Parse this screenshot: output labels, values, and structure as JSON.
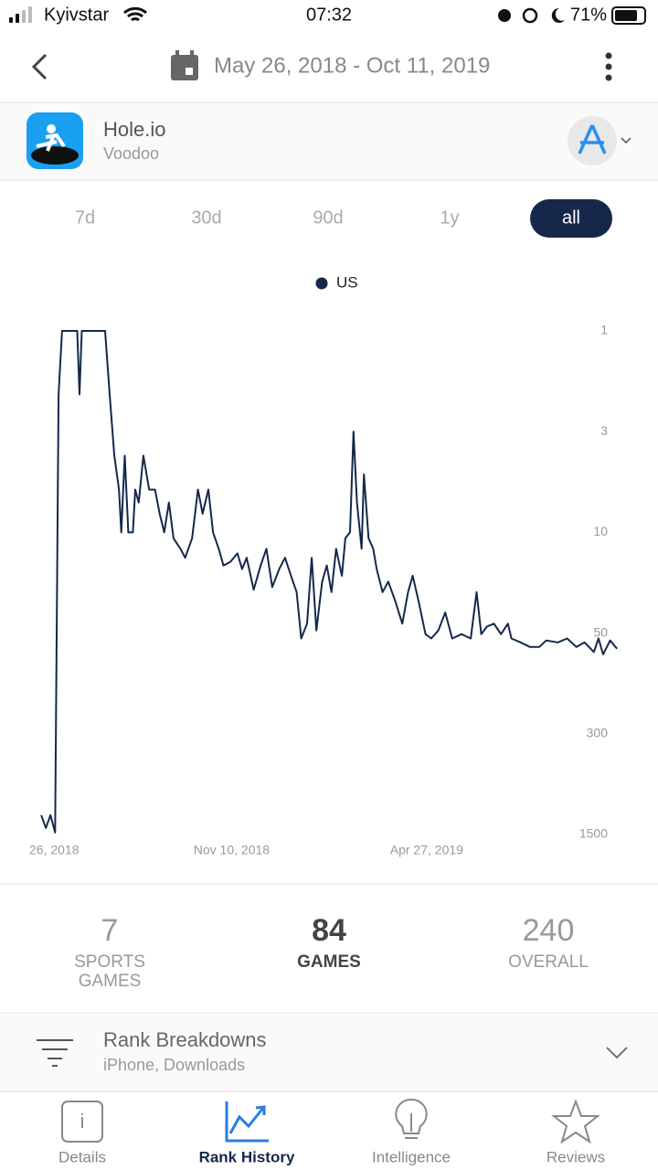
{
  "status_bar": {
    "carrier": "Kyivstar",
    "time": "07:32",
    "battery": "71%"
  },
  "header": {
    "date_range": "May 26, 2018 - Oct 11, 2019"
  },
  "app": {
    "name": "Hole.io",
    "developer": "Voodoo"
  },
  "range_tabs": {
    "options": [
      "7d",
      "30d",
      "90d",
      "1y",
      "all"
    ],
    "selected": 4
  },
  "chart_data": {
    "type": "line",
    "x": [
      "2018-05-30",
      "2018-06-03",
      "2018-06-07",
      "2018-06-11",
      "2018-06-14",
      "2018-06-17",
      "2018-06-30",
      "2018-07-02",
      "2018-07-04",
      "2018-07-24",
      "2018-07-28",
      "2018-08-01",
      "2018-08-05",
      "2018-08-07",
      "2018-08-10",
      "2018-08-13",
      "2018-08-17",
      "2018-08-19",
      "2018-08-22",
      "2018-08-26",
      "2018-08-31",
      "2018-09-05",
      "2018-09-09",
      "2018-09-13",
      "2018-09-17",
      "2018-09-21",
      "2018-09-27",
      "2018-10-01",
      "2018-10-07",
      "2018-10-12",
      "2018-10-16",
      "2018-10-21",
      "2018-10-25",
      "2018-10-30",
      "2018-11-03",
      "2018-11-09",
      "2018-11-15",
      "2018-11-19",
      "2018-11-23",
      "2018-11-29",
      "2018-12-05",
      "2018-12-10",
      "2018-12-15",
      "2018-12-21",
      "2018-12-26",
      "2019-01-01",
      "2019-01-05",
      "2019-01-09",
      "2019-01-14",
      "2019-01-18",
      "2019-01-22",
      "2019-01-27",
      "2019-01-31",
      "2019-02-04",
      "2019-02-08",
      "2019-02-13",
      "2019-02-16",
      "2019-02-20",
      "2019-02-23",
      "2019-02-26",
      "2019-03-02",
      "2019-03-04",
      "2019-03-08",
      "2019-03-12",
      "2019-03-15",
      "2019-03-20",
      "2019-03-25",
      "2019-03-31",
      "2019-04-06",
      "2019-04-11",
      "2019-04-15",
      "2019-04-20",
      "2019-04-26",
      "2019-05-01",
      "2019-05-07",
      "2019-05-13",
      "2019-05-19",
      "2019-05-27",
      "2019-06-04",
      "2019-06-09",
      "2019-06-13",
      "2019-06-18",
      "2019-06-24",
      "2019-06-30",
      "2019-07-06",
      "2019-07-09",
      "2019-07-17",
      "2019-07-25",
      "2019-08-02",
      "2019-08-08",
      "2019-08-18",
      "2019-08-26",
      "2019-09-03",
      "2019-09-10",
      "2019-09-18",
      "2019-09-22",
      "2019-09-26",
      "2019-10-02",
      "2019-10-08"
    ],
    "series": [
      {
        "name": "US",
        "color": "#15284b",
        "values": [
          1100,
          1350,
          1100,
          1450,
          2,
          1,
          1,
          2,
          1,
          1,
          2,
          4,
          6,
          10,
          4,
          10,
          10,
          6,
          7,
          4,
          6,
          6,
          8,
          10,
          7,
          11,
          13,
          15,
          11,
          6,
          8,
          6,
          10,
          13,
          17,
          16,
          14,
          18,
          15,
          25,
          17,
          13,
          24,
          18,
          15,
          21,
          26,
          55,
          43,
          15,
          48,
          22,
          17,
          26,
          13,
          20,
          11,
          10,
          3,
          7,
          13,
          5,
          11,
          13,
          18,
          26,
          22,
          30,
          43,
          26,
          20,
          30,
          51,
          55,
          48,
          36,
          55,
          51,
          55,
          26,
          51,
          45,
          43,
          51,
          43,
          55,
          59,
          64,
          64,
          57,
          59,
          55,
          64,
          59,
          70,
          55,
          73,
          57,
          66
        ]
      }
    ],
    "xlim": [
      "2018-05-26",
      "2019-10-11"
    ],
    "xticks": [
      {
        "value": "2018-05-26",
        "label": "26, 2018"
      },
      {
        "value": "2018-11-10",
        "label": "Nov 10, 2018"
      },
      {
        "value": "2019-04-27",
        "label": "Apr 27, 2019"
      }
    ],
    "ylim": [
      1,
      1500
    ],
    "yticks": [
      1,
      3,
      10,
      50,
      300,
      1500
    ],
    "y_scale": "log",
    "y_inverted": true,
    "grid": false,
    "legend": "top"
  },
  "ranks": [
    {
      "value": 7,
      "label": "SPORTS GAMES"
    },
    {
      "value": 84,
      "label": "GAMES"
    },
    {
      "value": 240,
      "label": "OVERALL"
    }
  ],
  "ranks_highlighted": 1,
  "breakdown": {
    "title": "Rank Breakdowns",
    "subtitle": "iPhone, Downloads"
  },
  "nav": {
    "items": [
      "Details",
      "Rank History",
      "Intelligence",
      "Reviews"
    ],
    "active": 1
  }
}
